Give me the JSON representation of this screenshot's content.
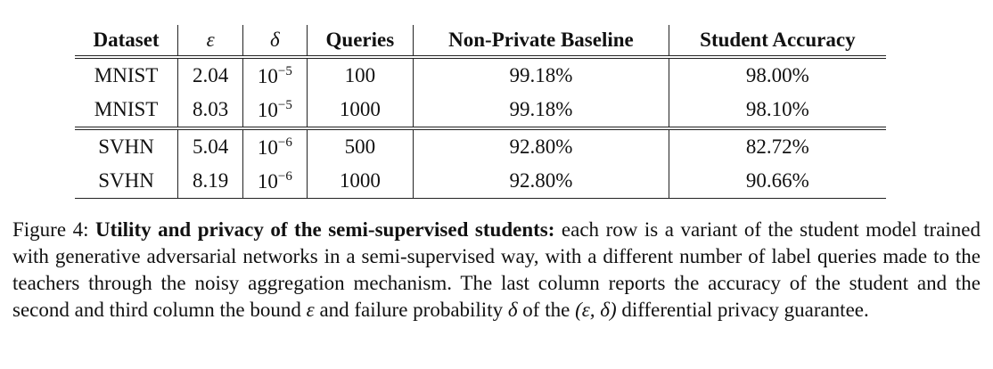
{
  "table": {
    "headers": [
      "Dataset",
      "ε",
      "δ",
      "Queries",
      "Non-Private Baseline",
      "Student Accuracy"
    ],
    "rows": [
      {
        "dataset": "MNIST",
        "epsilon": "2.04",
        "delta_base": "10",
        "delta_exp": "−5",
        "queries": "100",
        "baseline": "99.18%",
        "accuracy": "98.00%"
      },
      {
        "dataset": "MNIST",
        "epsilon": "8.03",
        "delta_base": "10",
        "delta_exp": "−5",
        "queries": "1000",
        "baseline": "99.18%",
        "accuracy": "98.10%"
      },
      {
        "dataset": "SVHN",
        "epsilon": "5.04",
        "delta_base": "10",
        "delta_exp": "−6",
        "queries": "500",
        "baseline": "92.80%",
        "accuracy": "82.72%"
      },
      {
        "dataset": "SVHN",
        "epsilon": "8.19",
        "delta_base": "10",
        "delta_exp": "−6",
        "queries": "1000",
        "baseline": "92.80%",
        "accuracy": "90.66%"
      }
    ]
  },
  "caption": {
    "label": "Figure 4:",
    "bold_title": "Utility and privacy of the semi-supervised students:",
    "body_1": "each row is a variant of the student model trained with generative adversarial networks in a semi-supervised way, with a different number of label queries made to the teachers through the noisy aggregation mechanism. The last column reports the accuracy of the student and the second and third column the bound",
    "epsilon": "ε",
    "body_2": "and failure probability",
    "delta": "δ",
    "body_3": "of the",
    "pair": "(ε, δ)",
    "body_4": "differential privacy guarantee."
  }
}
